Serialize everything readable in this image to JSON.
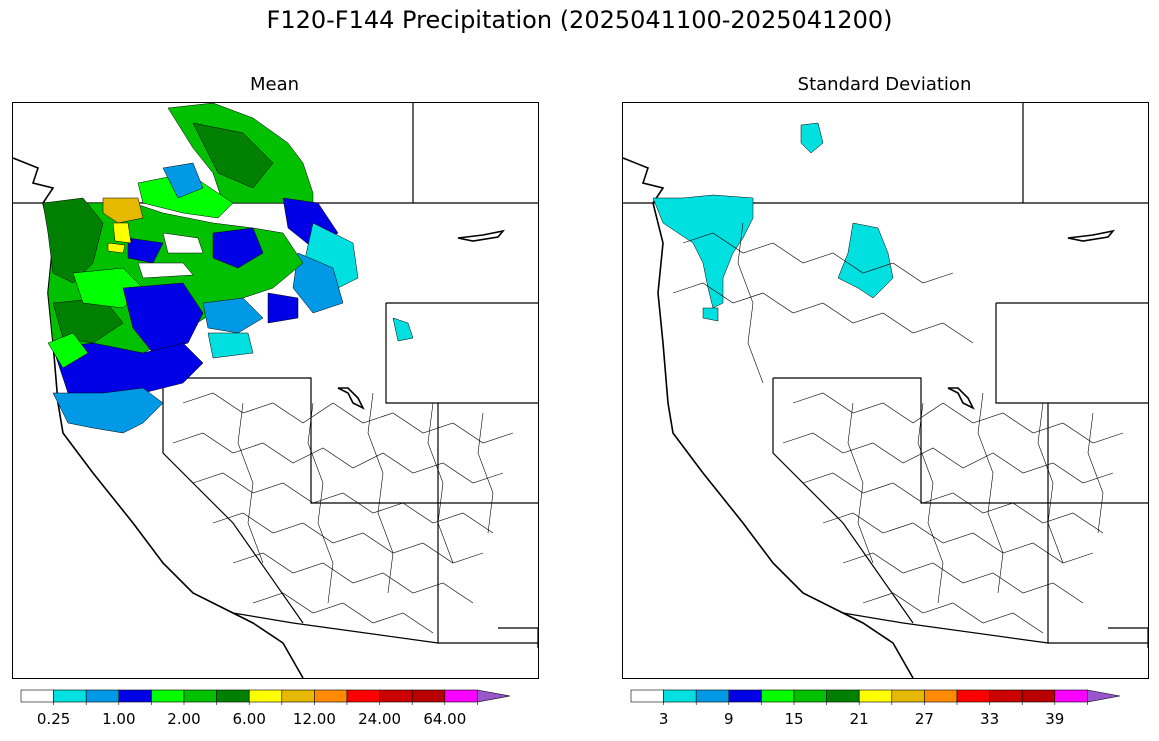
{
  "title": "F120-F144 Precipitation (2025041100-2025041200)",
  "panels": [
    {
      "id": "mean",
      "title": "Mean"
    },
    {
      "id": "stdev",
      "title": "Standard Deviation"
    }
  ],
  "colors": [
    "#ffffff",
    "#00e0e0",
    "#0099e6",
    "#0000e6",
    "#00ff00",
    "#00c000",
    "#008000",
    "#ffff00",
    "#e6b800",
    "#ff8c00",
    "#ff0000",
    "#cc0000",
    "#b80000",
    "#ff00ff",
    "#9955cc"
  ],
  "colorbars": {
    "mean": {
      "labels": [
        "0.25",
        "1.00",
        "2.00",
        "6.00",
        "12.00",
        "24.00",
        "64.00"
      ],
      "extend": "max"
    },
    "stdev": {
      "labels": [
        "3",
        "9",
        "15",
        "21",
        "27",
        "33",
        "39"
      ],
      "extend": "max"
    }
  }
}
